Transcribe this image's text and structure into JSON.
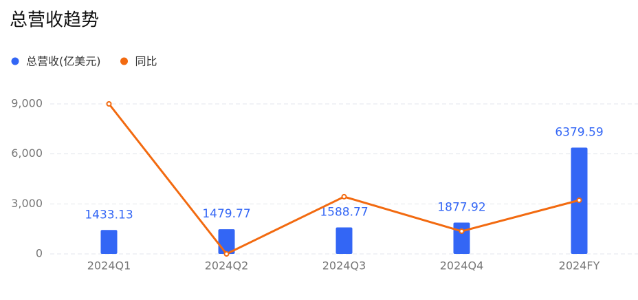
{
  "chart_data": {
    "type": "bar-line",
    "title": "总营收趋势",
    "categories": [
      "2024Q1",
      "2024Q2",
      "2024Q3",
      "2024Q4",
      "2024FY"
    ],
    "series": [
      {
        "name": "总营收(亿美元)",
        "type": "bar",
        "color": "#3366f5",
        "values": [
          1433.13,
          1479.77,
          1588.77,
          1877.92,
          6379.59
        ],
        "show_value_labels": true
      },
      {
        "name": "同比",
        "type": "line",
        "color": "#f26a10",
        "values": [
          9000,
          0,
          3430,
          1360,
          3220
        ]
      }
    ],
    "ylim": [
      0,
      9000
    ],
    "yticks": [
      0,
      {
        "value": 3000,
        "label": "3,000"
      },
      {
        "value": 6000,
        "label": "6,000"
      },
      {
        "value": 9000,
        "label": "9,000"
      }
    ],
    "grid": true,
    "legend": "top-left"
  }
}
